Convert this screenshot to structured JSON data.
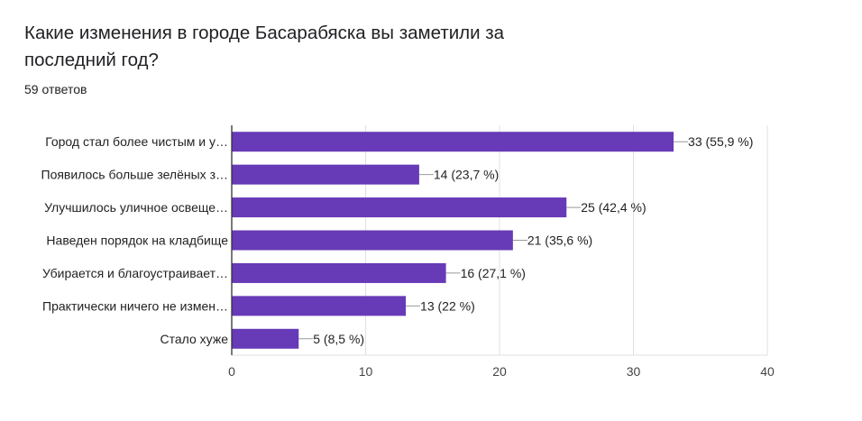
{
  "question": {
    "title": "Какие изменения в городе Басарабяска вы заметили за последний год?",
    "responses": "59 ответов"
  },
  "colors": {
    "bar": "#673ab7",
    "grid": "#e0e0e0",
    "axis": "#333333"
  },
  "chart_data": {
    "type": "bar",
    "orientation": "horizontal",
    "categories": [
      "Город стал более чистым и у…",
      "Появилось больше зелёных з…",
      "Улучшилось уличное освеще…",
      "Наведен порядок на кладбище",
      "Убирается и благоустраивает…",
      "Практически ничего не измен…",
      "Стало хуже"
    ],
    "values": [
      33,
      14,
      25,
      21,
      16,
      13,
      5
    ],
    "value_labels": [
      "33 (55,9 %)",
      "14 (23,7 %)",
      "25 (42,4 %)",
      "21 (35,6 %)",
      "16 (27,1 %)",
      "13 (22 %)",
      "5 (8,5 %)"
    ],
    "xlim": [
      0,
      40
    ],
    "xticks": [
      0,
      10,
      20,
      30,
      40
    ],
    "grid": true
  }
}
